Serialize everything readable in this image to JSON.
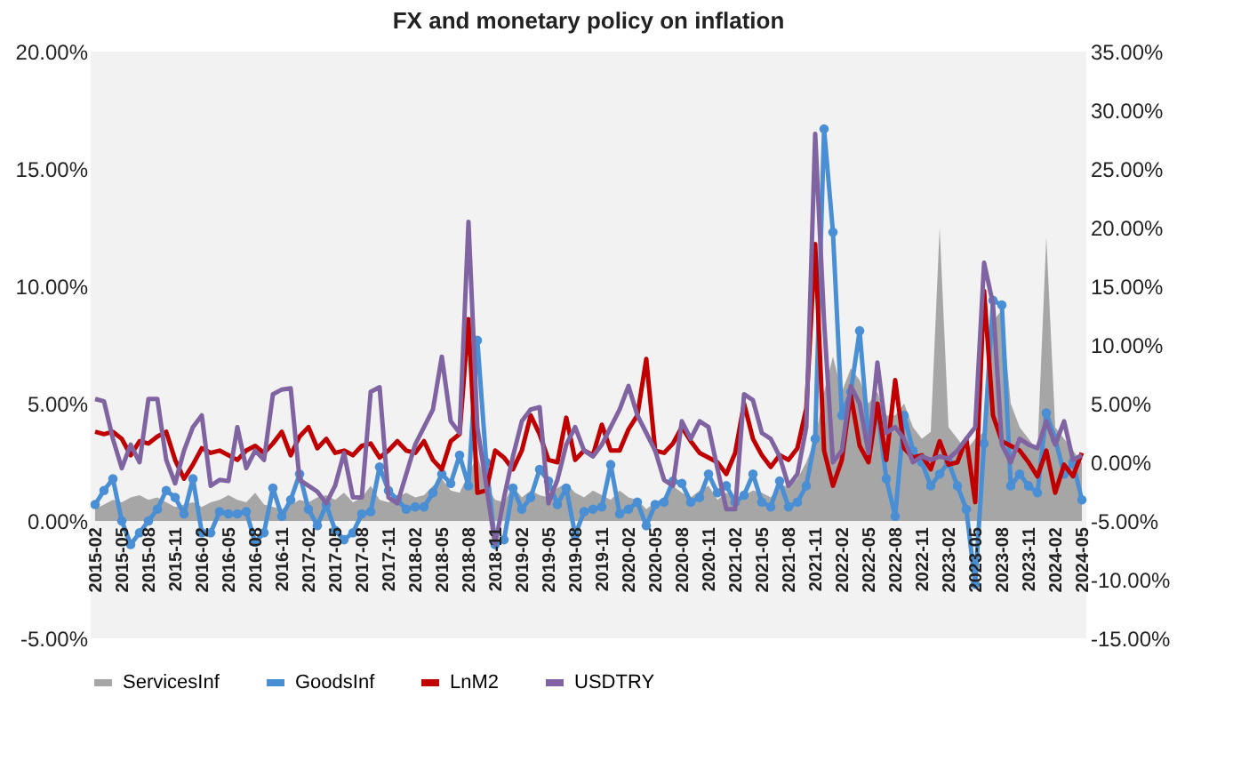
{
  "chart_data": {
    "type": "line",
    "title": "FX  and monetary policy on inflation",
    "categories": [
      "2015-02",
      null,
      null,
      "2015-05",
      null,
      null,
      "2015-08",
      null,
      null,
      "2015-11",
      null,
      null,
      "2016-02",
      null,
      null,
      "2016-05",
      null,
      null,
      "2016-08",
      null,
      null,
      "2016-11",
      null,
      null,
      "2017-02",
      null,
      null,
      "2017-05",
      null,
      null,
      "2017-08",
      null,
      null,
      "2017-11",
      null,
      null,
      "2018-02",
      null,
      null,
      "2018-05",
      null,
      null,
      "2018-08",
      null,
      null,
      "2018-11",
      null,
      null,
      "2019-02",
      null,
      null,
      "2019-05",
      null,
      null,
      "2019-08",
      null,
      null,
      "2019-11",
      null,
      null,
      "2020-02",
      null,
      null,
      "2020-05",
      null,
      null,
      "2020-08",
      null,
      null,
      "2020-11",
      null,
      null,
      "2021-02",
      null,
      null,
      "2021-05",
      null,
      null,
      "2021-08",
      null,
      null,
      "2021-11",
      null,
      null,
      "2022-02",
      null,
      null,
      "2022-05",
      null,
      null,
      "2022-08",
      null,
      null,
      "2022-11",
      null,
      null,
      "2023-02",
      null,
      null,
      "2023-05",
      null,
      null,
      "2023-08",
      null,
      null,
      "2023-11",
      null,
      null,
      "2024-02",
      null,
      null,
      "2024-05"
    ],
    "series": [
      {
        "name": "ServicesInf",
        "type": "area",
        "color": "#a6a6a6",
        "values": [
          0.5,
          0.7,
          0.9,
          0.8,
          1.0,
          1.1,
          0.9,
          1.0,
          0.8,
          0.6,
          0.7,
          0.8,
          0.6,
          0.8,
          0.9,
          1.1,
          0.9,
          0.8,
          1.2,
          0.7,
          0.6,
          0.5,
          0.7,
          0.9,
          0.8,
          1.0,
          1.1,
          0.9,
          1.2,
          0.8,
          1.0,
          1.5,
          0.9,
          0.8,
          1.0,
          1.2,
          1.0,
          1.1,
          1.5,
          1.8,
          1.3,
          1.2,
          2.0,
          2.8,
          1.5,
          0.9,
          0.8,
          1.5,
          1.0,
          1.3,
          1.1,
          1.0,
          1.4,
          1.6,
          1.2,
          1.0,
          1.3,
          1.1,
          0.9,
          1.3,
          1.0,
          0.9,
          0.5,
          0.8,
          1.0,
          1.5,
          1.2,
          1.0,
          1.3,
          1.5,
          0.9,
          1.2,
          1.0,
          1.1,
          1.3,
          1.2,
          1.0,
          1.5,
          1.5,
          1.8,
          2.5,
          3.5,
          5.5,
          7.0,
          5.5,
          6.5,
          6.0,
          5.0,
          5.5,
          4.5,
          4.5,
          5.0,
          4.0,
          3.5,
          3.8,
          12.5,
          4.0,
          3.5,
          3.0,
          3.5,
          3.8,
          8.5,
          9.0,
          5.0,
          4.0,
          3.5,
          3.0,
          12.1,
          4.0,
          3.5,
          3.0,
          2.5
        ]
      },
      {
        "name": "GoodsInf",
        "marker": "circle",
        "color": "#4a8fd4",
        "values": [
          0.7,
          1.3,
          1.8,
          0.0,
          -1.0,
          -0.5,
          0.0,
          0.5,
          1.3,
          1.0,
          0.3,
          1.8,
          -0.5,
          -0.5,
          0.4,
          0.3,
          0.3,
          0.4,
          -0.9,
          -0.5,
          1.4,
          0.2,
          0.9,
          2.0,
          0.5,
          -0.2,
          0.7,
          -0.4,
          -0.8,
          -0.5,
          0.3,
          0.4,
          2.3,
          1.3,
          0.9,
          0.5,
          0.6,
          0.6,
          1.2,
          2.0,
          1.6,
          2.8,
          1.5,
          7.7,
          2.5,
          -1.0,
          -0.8,
          1.4,
          0.5,
          1.0,
          2.2,
          1.7,
          0.7,
          1.4,
          -0.6,
          0.4,
          0.5,
          0.6,
          2.4,
          0.3,
          0.5,
          0.8,
          -0.2,
          0.7,
          0.8,
          1.7,
          1.6,
          0.8,
          1.0,
          2.0,
          1.2,
          1.5,
          0.8,
          1.1,
          2.0,
          0.8,
          0.6,
          1.7,
          0.6,
          0.8,
          1.5,
          3.5,
          16.7,
          12.3,
          4.5,
          5.5,
          8.1,
          3.5,
          4.8,
          1.8,
          0.2,
          4.5,
          3.0,
          2.5,
          1.5,
          2.0,
          2.5,
          1.5,
          0.5,
          -2.7,
          3.3,
          9.4,
          9.2,
          1.5,
          2.0,
          1.5,
          1.2,
          4.6,
          3.5,
          2.0,
          2.5,
          0.9
        ]
      },
      {
        "name": "LnM2",
        "color": "#c00000",
        "values": [
          3.8,
          3.7,
          3.8,
          3.5,
          2.8,
          3.4,
          3.3,
          3.6,
          3.8,
          2.6,
          1.8,
          2.4,
          3.1,
          2.9,
          3.0,
          2.8,
          2.6,
          3.0,
          3.2,
          2.9,
          3.3,
          3.8,
          2.8,
          3.6,
          4.0,
          3.1,
          3.5,
          2.9,
          3.0,
          2.8,
          3.2,
          3.3,
          2.7,
          3.0,
          3.4,
          3.0,
          2.9,
          3.4,
          2.6,
          2.2,
          3.4,
          3.7,
          8.6,
          1.2,
          1.3,
          3.0,
          2.7,
          2.2,
          3.0,
          4.5,
          3.7,
          2.6,
          2.5,
          4.4,
          2.6,
          3.0,
          2.8,
          4.1,
          3.0,
          3.0,
          3.9,
          4.5,
          6.9,
          3.0,
          2.9,
          3.3,
          4.0,
          3.4,
          2.9,
          2.7,
          2.5,
          2.0,
          2.9,
          5.0,
          3.5,
          2.8,
          2.3,
          2.8,
          2.6,
          3.1,
          4.8,
          11.8,
          3.0,
          1.5,
          2.6,
          5.4,
          3.2,
          2.5,
          5.0,
          2.6,
          6.0,
          3.1,
          2.7,
          2.8,
          2.2,
          3.4,
          2.4,
          2.5,
          3.5,
          0.8,
          9.8,
          4.5,
          3.4,
          3.2,
          3.0,
          2.5,
          1.9,
          3.0,
          1.2,
          2.4,
          1.9,
          2.9
        ]
      },
      {
        "name": "USDTRY",
        "axis": "y2",
        "color": "#8064a2",
        "values": [
          5.4,
          5.2,
          2.0,
          -0.5,
          1.5,
          0,
          5.4,
          5.4,
          0.2,
          -1.8,
          1.0,
          3.0,
          4.0,
          -2.0,
          -1.5,
          -1.6,
          3.0,
          -0.5,
          1.0,
          0.2,
          5.8,
          6.2,
          6.3,
          -1.5,
          -2.0,
          -2.5,
          -3.5,
          -2.0,
          0.8,
          -3.0,
          -3.0,
          6.0,
          6.4,
          -3.0,
          -3.5,
          -1.0,
          1.5,
          3.0,
          4.5,
          9.0,
          3.5,
          2.5,
          20.5,
          3.0,
          -2.0,
          -7.0,
          -3.0,
          0.5,
          3.5,
          4.5,
          4.7,
          -3.5,
          -1.5,
          1.5,
          3.0,
          1.0,
          0.5,
          1.5,
          3.0,
          4.5,
          6.5,
          4.0,
          2.5,
          1.0,
          -1.5,
          -2.0,
          3.5,
          2.0,
          3.5,
          3.0,
          -0.5,
          -4.0,
          -4.0,
          5.8,
          5.3,
          2.5,
          2.0,
          0.5,
          -2.0,
          -1.0,
          3.0,
          28.0,
          12.0,
          0.0,
          1.0,
          6.5,
          5.0,
          0.8,
          8.5,
          2.5,
          3.0,
          2.0,
          0.0,
          0.5,
          0.2,
          0.5,
          0.3,
          1.0,
          2.0,
          3.0,
          17.0,
          13.5,
          1.5,
          0.0,
          2.0,
          1.5,
          1.2,
          3.5,
          1.5,
          3.5,
          0.2,
          0.6
        ]
      }
    ],
    "ylim": [
      -5,
      20
    ],
    "yticks": [
      {
        "value": -5,
        "label": "-5.00%"
      },
      {
        "value": 0,
        "label": "0.00%"
      },
      {
        "value": 5,
        "label": "5.00%"
      },
      {
        "value": 10,
        "label": "10.00%"
      },
      {
        "value": 15,
        "label": "15.00%"
      },
      {
        "value": 20,
        "label": "20.00%"
      }
    ],
    "y2lim": [
      -15,
      35
    ],
    "y2ticks": [
      {
        "value": -15,
        "label": "-15.00%"
      },
      {
        "value": -10,
        "label": "-10.00%"
      },
      {
        "value": -5,
        "label": "-5.00%"
      },
      {
        "value": 0,
        "label": "0.00%"
      },
      {
        "value": 5,
        "label": "5.00%"
      },
      {
        "value": 10,
        "label": "10.00%"
      },
      {
        "value": 15,
        "label": "15.00%"
      },
      {
        "value": 20,
        "label": "20.00%"
      },
      {
        "value": 25,
        "label": "25.00%"
      },
      {
        "value": 30,
        "label": "30.00%"
      },
      {
        "value": 35,
        "label": "35.00%"
      }
    ],
    "legend": "bottom"
  }
}
